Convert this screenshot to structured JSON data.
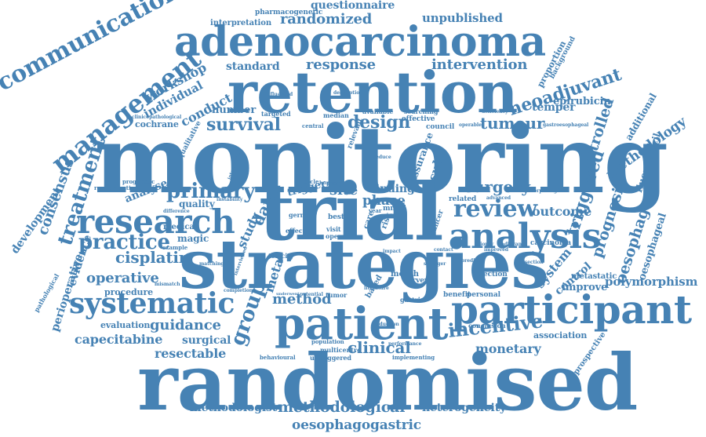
{
  "colors": {
    "primary": "#4682b4",
    "secondary": "#4f86b8",
    "background": "#ffffff"
  },
  "words": {
    "monitoring": "monitoring",
    "trial": "trial",
    "strategies": "strategies",
    "randomised": "randomised",
    "retention": "retention",
    "adenocarcinoma": "adenocarcinoma",
    "patient": "patient",
    "participant": "participant",
    "analysis": "analysis",
    "research": "research",
    "systematic": "systematic",
    "review": "review",
    "communication": "communication",
    "management": "management",
    "treatment": "treatment",
    "practice": "practice",
    "design": "design",
    "survival": "survival",
    "primary": "primary",
    "surgery": "surgery",
    "incentive": "incentive",
    "clinical": "clinical",
    "group": "group",
    "cisplatin": "cisplatin",
    "operative": "operative",
    "method": "method",
    "guidance": "guidance",
    "capecitabine": "capecitabine",
    "resectable": "resectable",
    "surgical": "surgical",
    "methodologist": "methodologist",
    "methodological": "methodological",
    "heterogeneity": "heterogeneity",
    "oesophagogastric": "oesophagogastric",
    "monetary": "monetary",
    "neoadjuvant": "neoadjuvant",
    "tumour": "tumour",
    "intervention": "intervention",
    "response": "response",
    "randomized": "randomized",
    "unpublished": "unpublished",
    "questionnaire": "questionnaire",
    "pharmacogenetic": "pharmacogenetic",
    "interpretation": "interpretation",
    "standard": "standard",
    "workshop": "workshop",
    "individual": "individual",
    "conduct": "conduct",
    "number": "number",
    "cochrane": "cochrane",
    "consensus": "consensus",
    "development": "development",
    "evidence": "evidence",
    "perioperative": "perioperative",
    "pathological": "pathological",
    "procedure": "procedure",
    "evaluation": "evaluation",
    "analyse": "analyse",
    "quality": "quality",
    "magic": "magic",
    "medical": "medical",
    "study": "study",
    "data": "data",
    "meta": "meta",
    "site": "site",
    "trigger": "trigger",
    "finding": "finding",
    "phase": "phase",
    "result": "result",
    "outcome": "outcome",
    "triggered": "triggered",
    "controlled": "controlled",
    "methodology": "methodology",
    "temper": "temper",
    "epirubicin": "epirubicin",
    "additional": "additional",
    "fluorouracil": "fluorouracil",
    "prognosis": "prognosis",
    "oesophageal": "oesophageal",
    "system": "system",
    "control": "control",
    "improve": "improve",
    "polymorphism": "polymorphism",
    "metastatic": "metastatic",
    "association": "association",
    "prospective": "prospective",
    "proportion": "proportion",
    "background": "background",
    "carcinoma": "carcinoma",
    "selection": "selection",
    "month": "month",
    "survey": "survey",
    "based": "based",
    "gastric": "gastric",
    "multicentre": "multicentre",
    "untriggered": "untriggered",
    "behavioural": "behavioural",
    "population": "population",
    "implementing": "implementing",
    "benefit": "benefit",
    "personal": "personal",
    "conclusion": "conclusion",
    "tumor": "tumor",
    "related": "related",
    "effective": "effective",
    "council": "council",
    "searching": "searching",
    "available": "available",
    "median": "median",
    "central": "central",
    "targeted": "targeted",
    "qualitative": "qualitative",
    "randomisation": "randomisation",
    "prognostic": "prognostic",
    "toxicity": "toxicity",
    "effect": "effect",
    "germ": "germ",
    "best": "best",
    "visit": "visit",
    "open": "open",
    "poor": "poor",
    "human": "human",
    "cycle": "cycle",
    "example": "example",
    "biopsy": "biopsy",
    "adjuvant": "adjuvant",
    "deficiency": "deficiency",
    "resection": "resection",
    "mismatch": "mismatch",
    "completion": "completion",
    "difference": "difference",
    "instability": "instability",
    "morphological": "morphological",
    "advanced": "advanced",
    "gastroesophageal": "gastroesophageal",
    "clinicopathological": "clinicopathological",
    "operable": "operable",
    "description": "description",
    "influenced": "influenced",
    "individual_small": "individual",
    "interaction": "interaction",
    "relevant": "relevant",
    "reduce": "reduce",
    "cancer": "cancer",
    "assurance": "assurance",
    "care": "care",
    "risk": "risk",
    "mmrd": "mmrd",
    "year": "year",
    "impact": "impact",
    "contact": "contact",
    "improved": "improved",
    "predict": "predict",
    "stronger": "stronger",
    "induction": "induction",
    "performance": "performance",
    "literature": "literature",
    "potential": "potential",
    "underwent": "underwent",
    "interviewed": "interviewed",
    "matching": "matching"
  }
}
